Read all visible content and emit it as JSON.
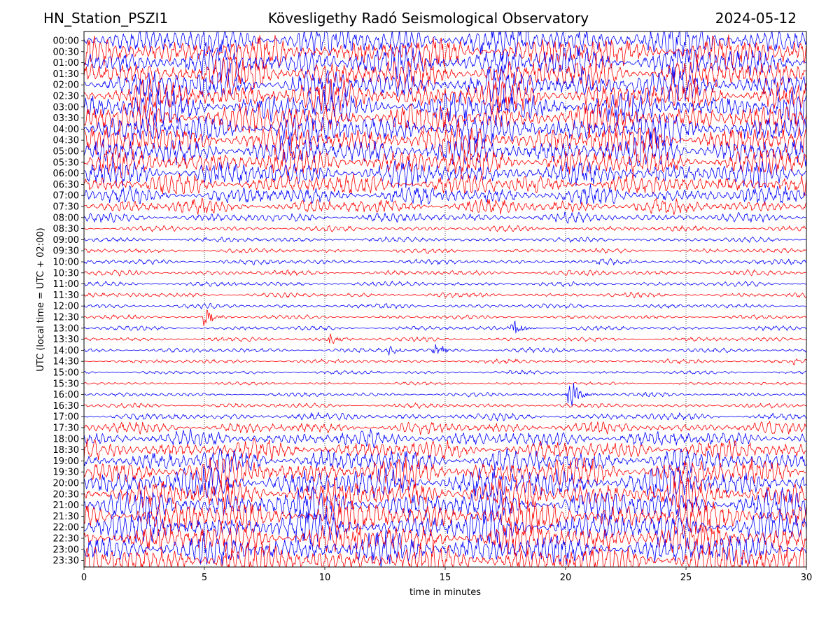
{
  "header": {
    "station": "HN_Station_PSZI1",
    "observatory": "Kövesligethy Radó Seismological Observatory",
    "date": "2024-05-12"
  },
  "chart_data": {
    "type": "line",
    "title": "Kövesligethy Radó Seismological Observatory",
    "xlabel": "time in minutes",
    "ylabel": "UTC (local time = UTC + 02:00)",
    "xlim": [
      0,
      30
    ],
    "xticks": [
      0,
      5,
      10,
      15,
      20,
      25,
      30
    ],
    "xtick_labels": [
      "0",
      "5",
      "10",
      "15",
      "20",
      "25",
      "30"
    ],
    "grid": "vertical dotted at 5-minute ticks",
    "trace_colors": [
      "#0000ff",
      "#ff0000"
    ],
    "rows": [
      "00:00",
      "00:30",
      "01:00",
      "01:30",
      "02:00",
      "02:30",
      "03:00",
      "03:30",
      "04:00",
      "04:30",
      "05:00",
      "05:30",
      "06:00",
      "06:30",
      "07:00",
      "07:30",
      "08:00",
      "08:30",
      "09:00",
      "09:30",
      "10:00",
      "10:30",
      "11:00",
      "11:30",
      "12:00",
      "12:30",
      "13:00",
      "13:30",
      "14:00",
      "14:30",
      "15:00",
      "15:30",
      "16:00",
      "16:30",
      "17:00",
      "17:30",
      "18:00",
      "18:30",
      "19:00",
      "19:30",
      "20:00",
      "20:30",
      "21:00",
      "21:30",
      "22:00",
      "22:30",
      "23:00",
      "23:30"
    ],
    "noise_level": [
      1.0,
      1.0,
      1.0,
      1.0,
      1.0,
      1.0,
      1.0,
      1.0,
      1.0,
      1.0,
      0.95,
      0.9,
      0.8,
      0.65,
      0.55,
      0.45,
      0.28,
      0.14,
      0.12,
      0.12,
      0.14,
      0.14,
      0.12,
      0.12,
      0.12,
      0.1,
      0.1,
      0.1,
      0.12,
      0.1,
      0.08,
      0.06,
      0.1,
      0.12,
      0.2,
      0.35,
      0.5,
      0.6,
      0.75,
      0.9,
      1.0,
      1.0,
      1.0,
      1.0,
      1.0,
      1.0,
      1.0,
      1.0
    ],
    "events": [
      {
        "row": "12:30",
        "minute": 5.0,
        "amplitude": 0.9
      },
      {
        "row": "13:00",
        "minute": 17.8,
        "amplitude": 0.9
      },
      {
        "row": "13:30",
        "minute": 10.2,
        "amplitude": 0.6
      },
      {
        "row": "14:00",
        "minute": 12.7,
        "amplitude": 0.55
      },
      {
        "row": "14:00",
        "minute": 14.6,
        "amplitude": 0.6
      },
      {
        "row": "14:30",
        "minute": 29.5,
        "amplitude": 0.45
      },
      {
        "row": "16:00",
        "minute": 20.1,
        "amplitude": 2.2
      }
    ]
  }
}
